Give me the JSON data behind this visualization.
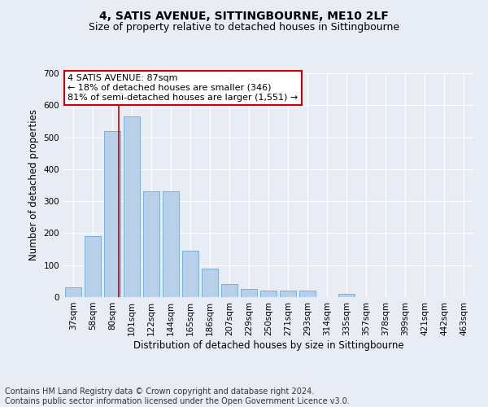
{
  "title": "4, SATIS AVENUE, SITTINGBOURNE, ME10 2LF",
  "subtitle": "Size of property relative to detached houses in Sittingbourne",
  "xlabel": "Distribution of detached houses by size in Sittingbourne",
  "ylabel": "Number of detached properties",
  "categories": [
    "37sqm",
    "58sqm",
    "80sqm",
    "101sqm",
    "122sqm",
    "144sqm",
    "165sqm",
    "186sqm",
    "207sqm",
    "229sqm",
    "250sqm",
    "271sqm",
    "293sqm",
    "314sqm",
    "335sqm",
    "357sqm",
    "378sqm",
    "399sqm",
    "421sqm",
    "442sqm",
    "463sqm"
  ],
  "values": [
    30,
    190,
    520,
    565,
    330,
    330,
    145,
    90,
    40,
    25,
    20,
    20,
    20,
    0,
    10,
    0,
    0,
    0,
    0,
    0,
    0
  ],
  "bar_color": "#b8d0ea",
  "bar_edgecolor": "#7aafd4",
  "bar_linewidth": 0.7,
  "background_color": "#e8edf5",
  "grid_color": "#ffffff",
  "ylim": [
    0,
    700
  ],
  "yticks": [
    0,
    100,
    200,
    300,
    400,
    500,
    600,
    700
  ],
  "redline_index": 2.35,
  "annotation_text": "4 SATIS AVENUE: 87sqm\n← 18% of detached houses are smaller (346)\n81% of semi-detached houses are larger (1,551) →",
  "annotation_box_color": "#ffffff",
  "annotation_box_edgecolor": "#cc0000",
  "footer_text": "Contains HM Land Registry data © Crown copyright and database right 2024.\nContains public sector information licensed under the Open Government Licence v3.0.",
  "title_fontsize": 10,
  "subtitle_fontsize": 9,
  "axis_label_fontsize": 8.5,
  "tick_fontsize": 7.5,
  "annotation_fontsize": 8,
  "footer_fontsize": 7
}
